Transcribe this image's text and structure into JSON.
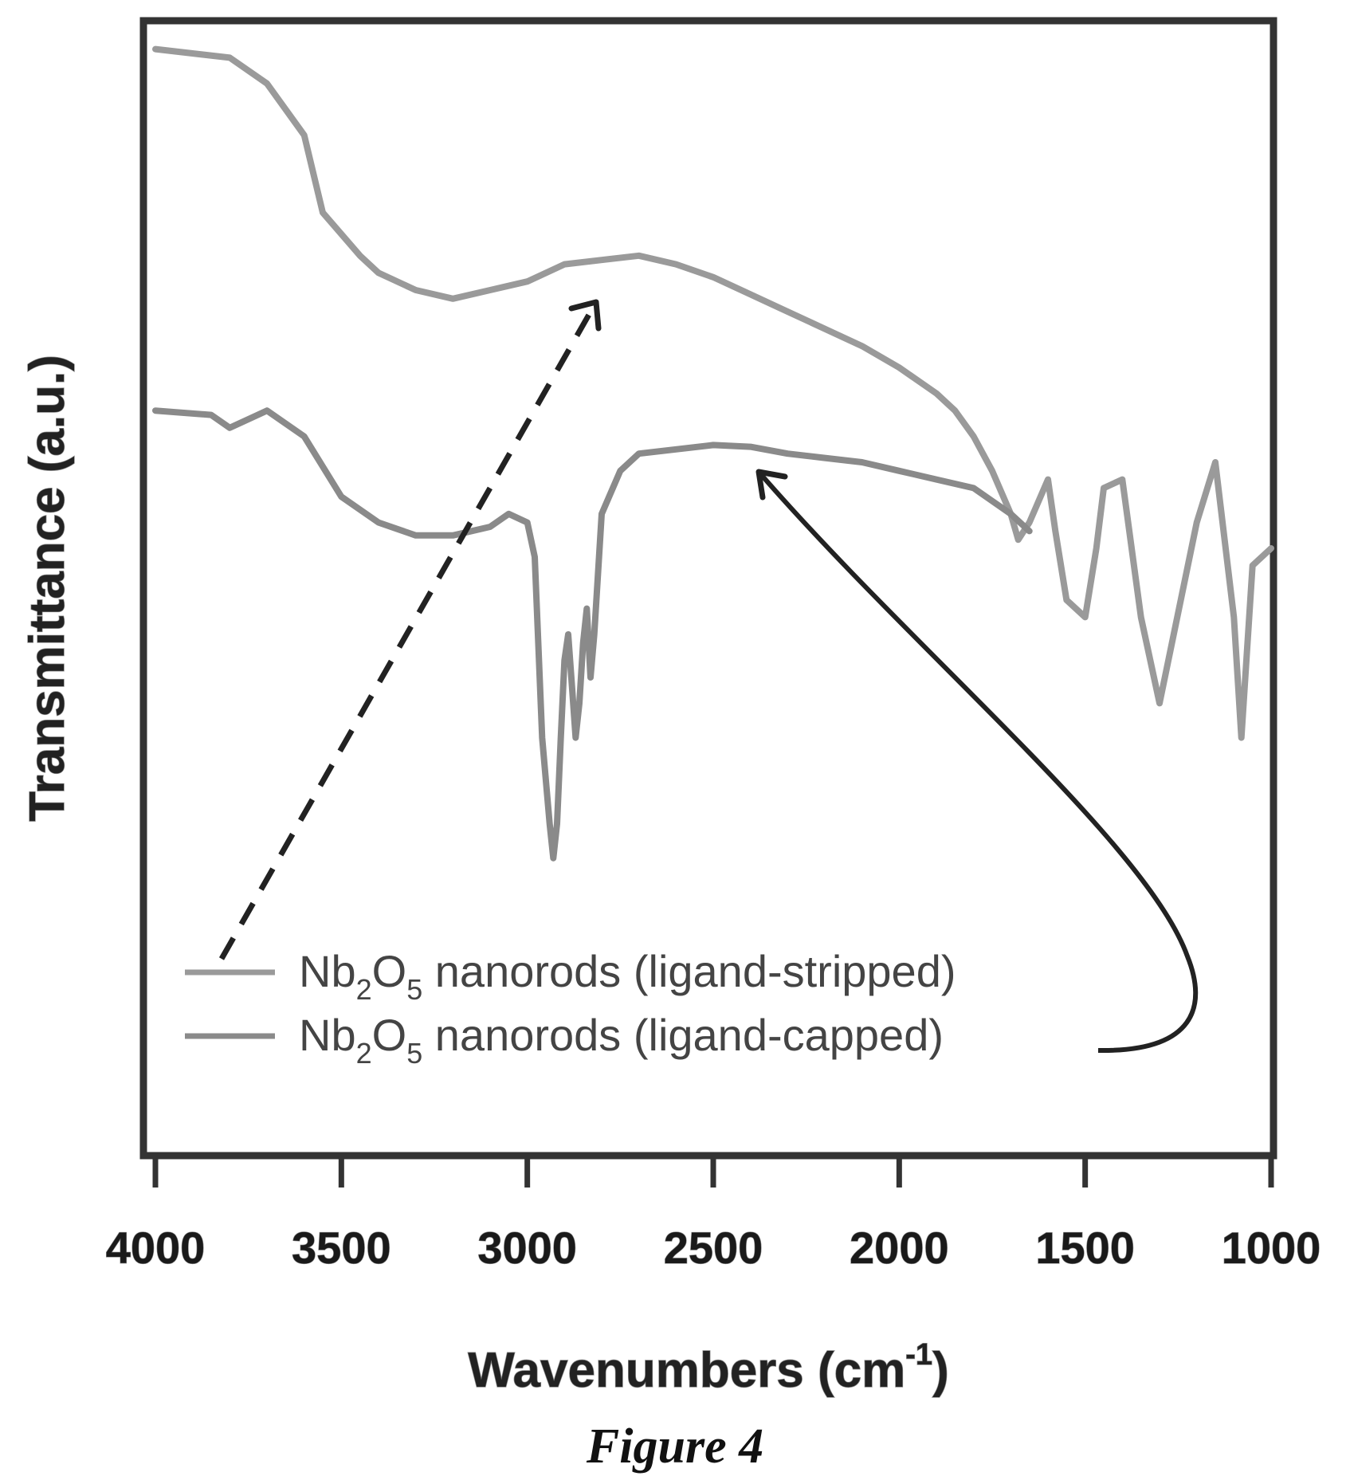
{
  "chart_data": {
    "type": "line",
    "xlabel": "Wavenumbers (cm",
    "xlabel_superscript": "-1",
    "xlabel_close": ")",
    "ylabel": "Transmittance (a.u.)",
    "xlim": [
      4000,
      1000
    ],
    "ylim": [
      0,
      100
    ],
    "x_ticks": [
      4000,
      3500,
      3000,
      2500,
      2000,
      1500,
      1000
    ],
    "grid": false,
    "legend_position": "bottom-left",
    "series": [
      {
        "name": "Nb2O5 nanorods (ligand-stripped)",
        "name_parts": [
          "Nb",
          "2",
          "O",
          "5",
          " nanorods (ligand-stripped)"
        ],
        "color": "#9a9a9a",
        "x": [
          4000,
          3800,
          3700,
          3600,
          3550,
          3450,
          3400,
          3300,
          3200,
          3100,
          3000,
          2900,
          2800,
          2700,
          2600,
          2500,
          2400,
          2300,
          2200,
          2100,
          2000,
          1900,
          1850,
          1800,
          1750,
          1700,
          1680,
          1650,
          1600,
          1580,
          1550,
          1500,
          1470,
          1450,
          1400,
          1350,
          1300,
          1200,
          1150,
          1100,
          1080,
          1050,
          1000
        ],
        "y": [
          98,
          97,
          94,
          88,
          79,
          74,
          72,
          70,
          69,
          70,
          71,
          73,
          73.5,
          74,
          73,
          71.5,
          69.5,
          67.5,
          65.5,
          63.5,
          61,
          58,
          56,
          53,
          49,
          44,
          41,
          43,
          48,
          42,
          34,
          32,
          40,
          47,
          48,
          32,
          22,
          43,
          50,
          32,
          18,
          38,
          40
        ]
      },
      {
        "name": "Nb2O5 nanorods (ligand-capped)",
        "name_parts": [
          "Nb",
          "2",
          "O",
          "5",
          " nanorods (ligand-capped)"
        ],
        "color": "#8a8a8a",
        "x": [
          4000,
          3850,
          3800,
          3750,
          3700,
          3600,
          3500,
          3400,
          3300,
          3200,
          3100,
          3050,
          3000,
          2980,
          2960,
          2940,
          2930,
          2920,
          2910,
          2900,
          2890,
          2880,
          2870,
          2860,
          2850,
          2840,
          2830,
          2820,
          2800,
          2750,
          2700,
          2600,
          2500,
          2400,
          2300,
          2200,
          2100,
          2000,
          1900,
          1800,
          1750,
          1700,
          1650
        ],
        "y": [
          56,
          55.5,
          54,
          55,
          56,
          53,
          46,
          43,
          41.5,
          41.5,
          42.5,
          44,
          43,
          39,
          18,
          8,
          4,
          8,
          18,
          27,
          30,
          24,
          18,
          22,
          29,
          33,
          25,
          30,
          44,
          49,
          51,
          51.5,
          52,
          51.8,
          51,
          50.5,
          50,
          49,
          48,
          47,
          45.5,
          44,
          42
        ]
      }
    ]
  },
  "caption": "Figure 4"
}
